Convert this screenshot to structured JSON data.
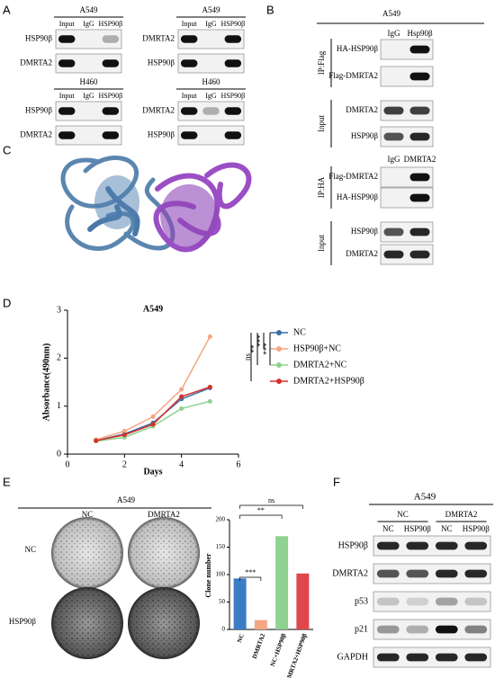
{
  "panel_labels": [
    "A",
    "B",
    "C",
    "D",
    "E",
    "F"
  ],
  "panel_a": {
    "blots": [
      {
        "title": "A549",
        "lanes": [
          "Input",
          "IgG",
          "HSP90β"
        ],
        "rows": [
          "HSP90β",
          "DMRTA2"
        ]
      },
      {
        "title": "A549",
        "lanes": [
          "Input",
          "IgG",
          "HSP90β"
        ],
        "rows": [
          "DMRTA2",
          "HSP90β"
        ]
      },
      {
        "title": "H460",
        "lanes": [
          "Input",
          "IgG",
          "HSP90β"
        ],
        "rows": [
          "HSP90β",
          "DMRTA2"
        ]
      },
      {
        "title": "H460",
        "lanes": [
          "Input",
          "IgG",
          "HSP90β"
        ],
        "rows": [
          "DMRTA2",
          "HSP90β"
        ]
      }
    ]
  },
  "panel_b": {
    "title": "A549",
    "top_lanes": [
      "IgG",
      "Hsp90β"
    ],
    "bottom_lanes": [
      "IgG",
      "DMRTA2"
    ],
    "groups": [
      {
        "label": "IP:Flag",
        "rows": [
          "HA-HSP90β",
          "Flag-DMRTA2"
        ]
      },
      {
        "label": "Input",
        "rows": [
          "DMRTA2",
          "HSP90β"
        ]
      },
      {
        "label": "IP:HA",
        "rows": [
          "Flag-DMRTA2",
          "HA-HSP90β"
        ]
      },
      {
        "label": "Input",
        "rows": [
          "HSP90β",
          "DMRTA2"
        ]
      }
    ]
  },
  "panel_e": {
    "title": "A549",
    "columns": [
      "NC",
      "DMRTA2"
    ],
    "rows": [
      "NC",
      "HSP90β"
    ]
  },
  "panel_f": {
    "title": "A549",
    "groups": [
      "NC",
      "DMRTA2"
    ],
    "lanes": [
      "NC",
      "HSP90β",
      "NC",
      "HSP90β"
    ],
    "rows": [
      "HSP90β",
      "DMRTA2",
      "p53",
      "p21",
      "GAPDH"
    ]
  },
  "chart_data": [
    {
      "type": "line",
      "title": "A549",
      "x_label": "Days",
      "y_label": "Absorbance(490nm)",
      "x": [
        1,
        2,
        3,
        4,
        5
      ],
      "xlim": [
        0,
        6
      ],
      "xticks": [
        0,
        2,
        4,
        6
      ],
      "ylim": [
        0,
        3
      ],
      "yticks": [
        0,
        1,
        2,
        3
      ],
      "series": [
        {
          "name": "NC",
          "color": "#3b6ea5",
          "values": [
            0.28,
            0.42,
            0.65,
            1.15,
            1.38
          ]
        },
        {
          "name": "HSP90β+NC",
          "color": "#f4a582",
          "values": [
            0.3,
            0.48,
            0.78,
            1.35,
            2.45
          ]
        },
        {
          "name": "DMRTA2+NC",
          "color": "#8fd18f",
          "values": [
            0.27,
            0.35,
            0.58,
            0.95,
            1.1
          ]
        },
        {
          "name": "DMRTA2+HSP90β",
          "color": "#d7302a",
          "values": [
            0.28,
            0.4,
            0.62,
            1.2,
            1.4
          ]
        }
      ],
      "annotations": [
        "ns",
        "**",
        "***",
        "***"
      ]
    },
    {
      "type": "bar",
      "y_label": "Clone number",
      "categories": [
        "NC",
        "DMRTA2",
        "NC+HSP90β",
        "DMRTA2+HSP90β"
      ],
      "values": [
        93,
        17,
        170,
        102
      ],
      "colors": [
        "#3b7dc4",
        "#f4a582",
        "#8fd18f",
        "#e0474c"
      ],
      "ylim": [
        0,
        200
      ],
      "yticks": [
        0,
        50,
        100,
        150,
        200
      ],
      "annotations": [
        "***",
        "**",
        "ns"
      ]
    }
  ]
}
